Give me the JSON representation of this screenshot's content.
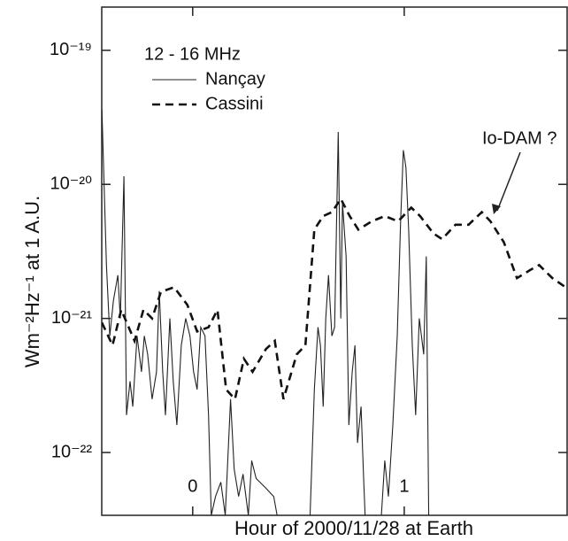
{
  "chart_data": {
    "type": "line",
    "xlabel": "Hour of 2000/11/28 at Earth",
    "ylabel": "Wm⁻²Hz⁻¹  at  1 A.U.",
    "legend_title": "12 - 16 MHz",
    "annotation": "Io-DAM ?",
    "ylog": true,
    "legend": "upper left",
    "xlim": [
      -0.43,
      1.77
    ],
    "ylim": [
      3.4e-23,
      2.1e-19
    ],
    "xticks": [
      0,
      1
    ],
    "yticks": [
      {
        "value": 1e-22,
        "label": "10⁻²²"
      },
      {
        "value": 1e-21,
        "label": "10⁻²¹"
      },
      {
        "value": 1e-20,
        "label": "10⁻²⁰"
      },
      {
        "value": 1e-19,
        "label": "10⁻¹⁹"
      }
    ],
    "series": [
      {
        "name": "Nançay",
        "color": "#222222",
        "style": "solid",
        "x": [
          -0.429,
          -0.408,
          -0.392,
          -0.375,
          -0.354,
          -0.342,
          -0.325,
          -0.313,
          -0.296,
          -0.283,
          -0.263,
          -0.242,
          -0.229,
          -0.213,
          -0.192,
          -0.171,
          -0.158,
          -0.142,
          -0.129,
          -0.108,
          -0.092,
          -0.075,
          -0.054,
          -0.033,
          -0.013,
          0.004,
          0.021,
          0.038,
          0.058,
          0.075,
          0.088,
          0.108,
          0.133,
          0.154,
          0.179,
          0.196,
          0.217,
          0.238,
          0.263,
          0.279,
          0.3,
          0.342,
          0.383,
          0.425,
          0.55,
          0.575,
          0.592,
          0.604,
          0.617,
          0.629,
          0.642,
          0.658,
          0.671,
          0.688,
          0.7,
          0.708,
          0.725,
          0.738,
          0.754,
          0.767,
          0.779,
          0.796,
          0.808,
          0.821,
          0.883,
          0.908,
          0.925,
          0.946,
          0.967,
          0.983,
          0.996,
          1.008,
          1.021,
          1.038,
          1.054,
          1.071,
          1.092,
          1.104,
          1.117
        ],
        "values": [
          3.6e-20,
          2.5e-21,
          7.4e-22,
          1.36e-21,
          2.1e-21,
          1e-21,
          1.15e-20,
          1.9e-22,
          3.4e-22,
          2.2e-22,
          7.4e-22,
          4e-22,
          7.4e-22,
          5.4e-22,
          2.5e-22,
          4e-22,
          1.6e-21,
          4e-22,
          1.9e-22,
          1e-21,
          3.4e-22,
          1.6e-22,
          6.3e-22,
          1e-21,
          7.4e-22,
          4e-22,
          2.95e-22,
          8.6e-22,
          7.4e-22,
          1.9e-22,
          3.4e-23,
          4.7e-23,
          6e-23,
          3.4e-23,
          2.5e-22,
          7.5e-23,
          4.7e-23,
          6.9e-23,
          3.4e-23,
          8.7e-23,
          6.4e-23,
          5.5e-23,
          4.7e-23,
          2e-23,
          2e-23,
          2.95e-22,
          8.6e-22,
          6.3e-22,
          2.2e-22,
          1e-21,
          2.1e-21,
          7.4e-22,
          8.6e-22,
          2.46e-20,
          1e-21,
          7.3e-21,
          2.9e-21,
          1.6e-22,
          4e-22,
          6.3e-22,
          1.18e-22,
          2.2e-22,
          6.4e-23,
          2e-23,
          2e-23,
          8.7e-23,
          4.7e-23,
          1.6e-22,
          7.4e-22,
          5.3e-21,
          1.8e-20,
          1.34e-20,
          4.6e-21,
          6.3e-22,
          1.9e-22,
          1e-21,
          5.4e-22,
          2.9e-21,
          2e-23
        ]
      },
      {
        "name": "Cassini",
        "color": "#111111",
        "style": "dashed",
        "x": [
          -0.429,
          -0.379,
          -0.338,
          -0.275,
          -0.233,
          -0.192,
          -0.15,
          -0.088,
          -0.025,
          0.021,
          0.075,
          0.117,
          0.158,
          0.2,
          0.242,
          0.283,
          0.346,
          0.388,
          0.429,
          0.492,
          0.533,
          0.575,
          0.617,
          0.658,
          0.7,
          0.742,
          0.783,
          0.846,
          0.908,
          0.971,
          1.033,
          1.075,
          1.138,
          1.179,
          1.242,
          1.304,
          1.367,
          1.408,
          1.471,
          1.533,
          1.596,
          1.638,
          1.7,
          1.763
        ],
        "values": [
          9.3e-22,
          6.3e-22,
          1.16e-21,
          6.8e-22,
          1.16e-21,
          1e-21,
          1.58e-21,
          1.71e-21,
          1.26e-21,
          8e-22,
          8.6e-22,
          1.16e-21,
          2.95e-22,
          2.5e-22,
          5e-22,
          4e-22,
          5.9e-22,
          6.8e-22,
          2.5e-22,
          5.4e-22,
          6.3e-22,
          4.6e-21,
          5.8e-21,
          6.2e-21,
          7.8e-21,
          5.8e-21,
          4.6e-21,
          5.3e-21,
          5.8e-21,
          5.3e-21,
          6.7e-21,
          5.8e-21,
          4.3e-21,
          3.9e-21,
          5e-21,
          5e-21,
          6.2e-21,
          5.3e-21,
          3.7e-21,
          2e-21,
          2.3e-21,
          2.5e-21,
          2e-21,
          1.71e-21
        ]
      }
    ]
  }
}
